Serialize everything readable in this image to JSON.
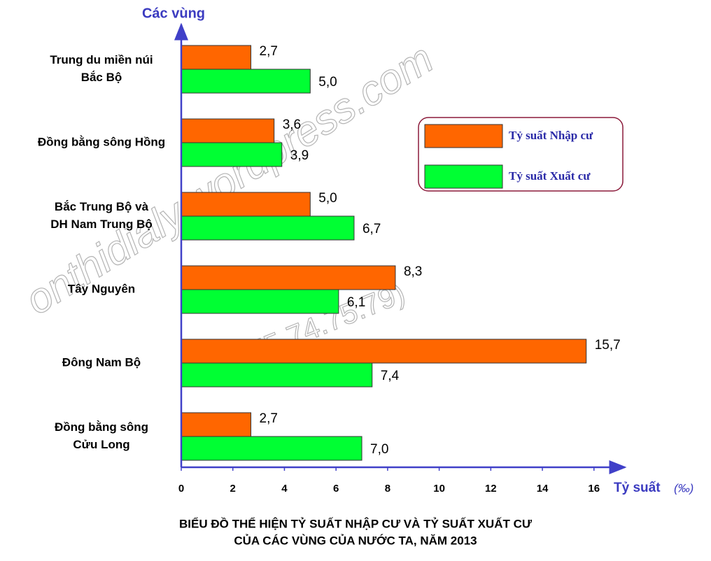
{
  "chart_data": {
    "type": "hbar",
    "title": [
      "BIỂU ĐỒ THỂ HIỆN TỶ SUẤT NHẬP CƯ VÀ TỶ SUẤT XUẤT CƯ",
      "CỦA CÁC VÙNG CỦA NƯỚC TA, NĂM 2013"
    ],
    "ylabel": "Các vùng",
    "xlabel": "Tỷ suất",
    "xlabel_unit": "(‰)",
    "watermark": [
      "onthidialy.wordpress.com",
      "(0975.74.75.79)"
    ],
    "categories": [
      [
        "Trung du miền núi",
        "Bắc Bộ"
      ],
      [
        "Đồng bằng sông Hồng"
      ],
      [
        "Bắc Trung Bộ và",
        "DH Nam Trung Bộ"
      ],
      [
        "Tây Nguyên"
      ],
      [
        "Đông Nam Bộ"
      ],
      [
        "Đồng bằng sông",
        "Cửu Long"
      ]
    ],
    "series": [
      {
        "name": "Tỷ suất Nhập cư",
        "color": "#ff6600",
        "values": [
          2.7,
          3.6,
          5.0,
          8.3,
          15.7,
          2.7
        ],
        "value_labels": [
          "2,7",
          "3,6",
          "5,0",
          "8,3",
          "15,7",
          "2,7"
        ]
      },
      {
        "name": "Tỷ suất Xuất cư",
        "color": "#00ff33",
        "values": [
          5.0,
          3.9,
          6.7,
          6.1,
          7.4,
          7.0
        ],
        "value_labels": [
          "5,0",
          "3,9",
          "6,7",
          "6,1",
          "7,4",
          "7,0"
        ]
      }
    ],
    "xlim": [
      0,
      17.2
    ],
    "xticks": [
      0,
      2,
      4,
      6,
      8,
      10,
      12,
      14,
      16
    ],
    "grid": false,
    "legend": "upper-right"
  }
}
